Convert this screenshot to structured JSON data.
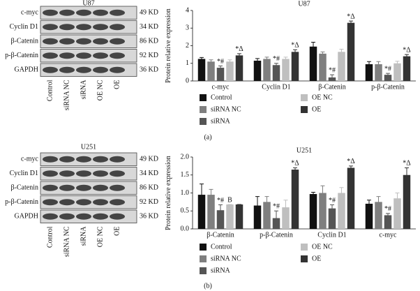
{
  "chart_data": [
    {
      "type": "bar",
      "title": "U87",
      "ylabel": "Protein relative expression",
      "caption": "(a)",
      "categories": [
        "c-myc",
        "Cyclin D1",
        "β-Catenin",
        "p-β-Catenin"
      ],
      "ylim": [
        0,
        4
      ],
      "yticks": [
        0,
        1,
        2,
        3,
        4
      ],
      "series": [
        {
          "name": "Control",
          "color": "#111111",
          "values": [
            1.25,
            1.15,
            1.95,
            0.95
          ],
          "errors": [
            0.08,
            0.12,
            0.25,
            0.15
          ]
        },
        {
          "name": "siRNA NC",
          "color": "#7f7f7f",
          "values": [
            1.1,
            1.25,
            1.55,
            0.95
          ],
          "errors": [
            0.1,
            0.1,
            0.1,
            0.15
          ]
        },
        {
          "name": "siRNA",
          "color": "#555555",
          "values": [
            0.75,
            0.9,
            0.2,
            0.35
          ],
          "errors": [
            0.1,
            0.1,
            0.15,
            0.08
          ],
          "labels": [
            "*#",
            "*#",
            "*#",
            "*#"
          ]
        },
        {
          "name": "OE NC",
          "color": "#bfbfbf",
          "values": [
            1.1,
            1.25,
            1.65,
            1.0
          ],
          "errors": [
            0.1,
            0.1,
            0.15,
            0.12
          ]
        },
        {
          "name": "OE",
          "color": "#333333",
          "values": [
            1.45,
            1.65,
            3.3,
            1.4
          ],
          "errors": [
            0.1,
            0.12,
            0.1,
            0.1
          ],
          "labels": [
            "*Δ",
            "*Δ",
            "*Δ",
            "*Δ"
          ]
        }
      ]
    },
    {
      "type": "bar",
      "title": "U251",
      "ylabel": "Protein relative expression",
      "caption": "(b)",
      "categories": [
        "β-Catenin",
        "p-β-Catenin",
        "Cyclin D1",
        "c-myc"
      ],
      "ylim": [
        0,
        2
      ],
      "yticks": [
        {
          "value": 0,
          "label": "0.0"
        },
        {
          "value": 0.5,
          "label": "0.5"
        },
        {
          "value": 1,
          "label": "1.0"
        },
        {
          "value": 1.5,
          "label": "1.5"
        },
        {
          "value": 2,
          "label": "2.0"
        }
      ],
      "series": [
        {
          "name": "Control",
          "color": "#111111",
          "values": [
            0.95,
            0.65,
            0.97,
            0.7
          ],
          "errors": [
            0.3,
            0.25,
            0.05,
            0.1
          ]
        },
        {
          "name": "siRNA NC",
          "color": "#7f7f7f",
          "values": [
            0.95,
            0.75,
            1.0,
            0.75
          ],
          "errors": [
            0.15,
            0.15,
            0.2,
            0.15
          ]
        },
        {
          "name": "siRNA",
          "color": "#555555",
          "values": [
            0.52,
            0.3,
            0.57,
            0.38
          ],
          "errors": [
            0.15,
            0.2,
            0.1,
            0.05
          ],
          "labels": [
            "*#",
            "*#",
            "*#",
            "*#"
          ]
        },
        {
          "name": "OE NC",
          "color": "#bfbfbf",
          "values": [
            0.68,
            0.6,
            1.0,
            0.85
          ],
          "errors": [
            0.0,
            0.2,
            0.15,
            0.15
          ],
          "labels": [
            "B",
            null,
            null,
            null
          ]
        },
        {
          "name": "OE",
          "color": "#333333",
          "values": [
            0.68,
            1.65,
            1.7,
            1.5
          ],
          "errors": [
            0.0,
            0.05,
            0.05,
            0.2
          ],
          "labels": [
            null,
            "*Δ",
            "*Δ",
            "*Δ"
          ]
        }
      ]
    }
  ],
  "blots": [
    {
      "title": "U87",
      "rows": [
        {
          "label": "c-myc",
          "size": "49 KD"
        },
        {
          "label": "Cyclin D1",
          "size": "34 KD"
        },
        {
          "label": "β-Catenin",
          "size": "86 KD"
        },
        {
          "label": "p-β-Catenin",
          "size": "92 KD"
        },
        {
          "label": "GAPDH",
          "size": "36 KD"
        }
      ],
      "lanes": [
        "Control",
        "siRNA NC",
        "siRNA",
        "OE NC",
        "OE"
      ]
    },
    {
      "title": "U251",
      "rows": [
        {
          "label": "c-myc",
          "size": "49 KD"
        },
        {
          "label": "Cyclin D1",
          "size": "34 KD"
        },
        {
          "label": "β-Catenin",
          "size": "86 KD"
        },
        {
          "label": "p-β-Catenin",
          "size": "92 KD"
        },
        {
          "label": "GAPDH",
          "size": "36 KD"
        }
      ],
      "lanes": [
        "Control",
        "siRNA NC",
        "siRNA",
        "OE NC",
        "OE"
      ]
    }
  ]
}
